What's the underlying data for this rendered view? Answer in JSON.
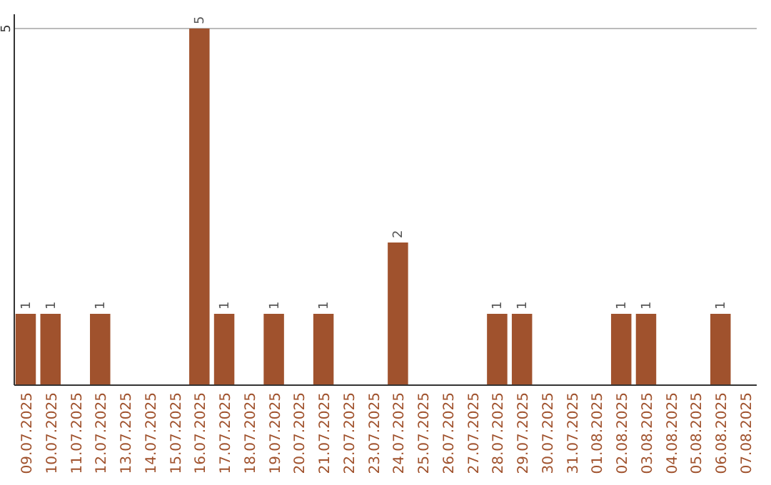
{
  "chart_data": {
    "type": "bar",
    "categories": [
      "09.07.2025",
      "10.07.2025",
      "11.07.2025",
      "12.07.2025",
      "13.07.2025",
      "14.07.2025",
      "15.07.2025",
      "16.07.2025",
      "17.07.2025",
      "18.07.2025",
      "19.07.2025",
      "20.07.2025",
      "21.07.2025",
      "22.07.2025",
      "23.07.2025",
      "24.07.2025",
      "25.07.2025",
      "26.07.2025",
      "27.07.2025",
      "28.07.2025",
      "29.07.2025",
      "30.07.2025",
      "31.07.2025",
      "01.08.2025",
      "02.08.2025",
      "03.08.2025",
      "04.08.2025",
      "05.08.2025",
      "06.08.2025",
      "07.08.2025"
    ],
    "values": [
      1,
      1,
      0,
      1,
      0,
      0,
      0,
      5,
      1,
      0,
      1,
      0,
      1,
      0,
      0,
      2,
      0,
      0,
      0,
      1,
      1,
      0,
      0,
      0,
      1,
      1,
      0,
      0,
      1,
      0
    ],
    "value_labels": [
      "1",
      "1",
      null,
      "1",
      null,
      null,
      null,
      "5",
      "1",
      null,
      "1",
      null,
      "1",
      null,
      null,
      "2",
      null,
      null,
      null,
      "1",
      "1",
      null,
      null,
      null,
      "1",
      "1",
      null,
      null,
      "1",
      null
    ],
    "color": "#a0522d",
    "ylim": [
      0,
      5.2
    ],
    "yticks": [
      5
    ],
    "grid": "y"
  }
}
